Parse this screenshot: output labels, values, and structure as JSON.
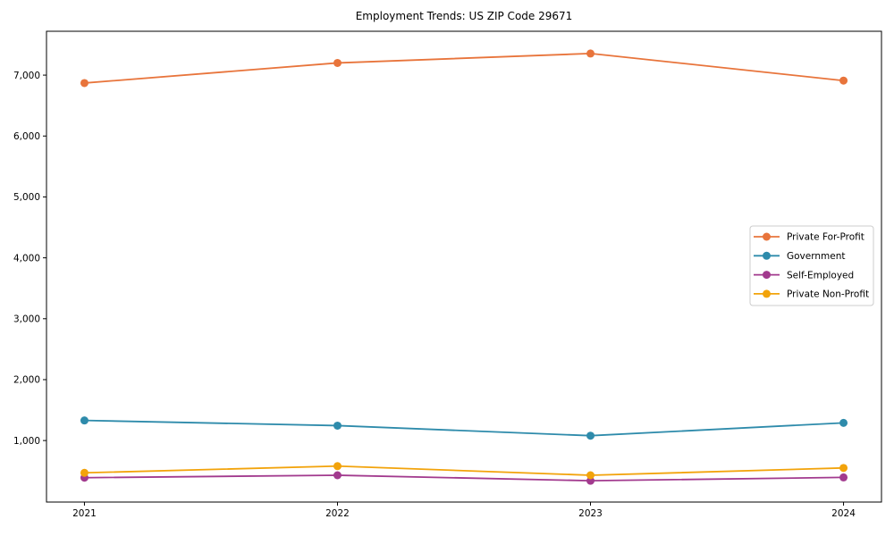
{
  "title": "Employment Trends: US ZIP Code 29671",
  "chart_data": {
    "type": "line",
    "title": "Employment Trends: US ZIP Code 29671",
    "categories": [
      2021,
      2022,
      2023,
      2024
    ],
    "x_tick_labels": [
      "2021",
      "2022",
      "2023",
      "2024"
    ],
    "series": [
      {
        "name": "Private For-Profit",
        "color": "#E8743B",
        "values": [
          6870,
          7200,
          7355,
          6910
        ]
      },
      {
        "name": "Government",
        "color": "#2E8BAB",
        "values": [
          1330,
          1245,
          1080,
          1290
        ]
      },
      {
        "name": "Self-Employed",
        "color": "#A23A8E",
        "values": [
          390,
          430,
          340,
          395
        ]
      },
      {
        "name": "Private Non-Profit",
        "color": "#F2A30B",
        "values": [
          470,
          580,
          430,
          550
        ]
      }
    ],
    "xlabel": "",
    "ylabel": "",
    "y_ticks": [
      1000,
      2000,
      3000,
      4000,
      5000,
      6000,
      7000
    ],
    "y_tick_labels": [
      "1,000",
      "2,000",
      "3,000",
      "4,000",
      "5,000",
      "6,000",
      "7,000"
    ],
    "xlim": [
      2020.85,
      2024.15
    ],
    "ylim": [
      -10,
      7720
    ],
    "grid": false,
    "legend_position": "center right",
    "legend_labels": [
      "Private For-Profit",
      "Government",
      "Self-Employed",
      "Private Non-Profit"
    ]
  },
  "colors": {
    "axis": "#000000",
    "text": "#000000",
    "legend_border": "#cccccc",
    "legend_background": "#ffffff",
    "plot_background": "#ffffff"
  }
}
